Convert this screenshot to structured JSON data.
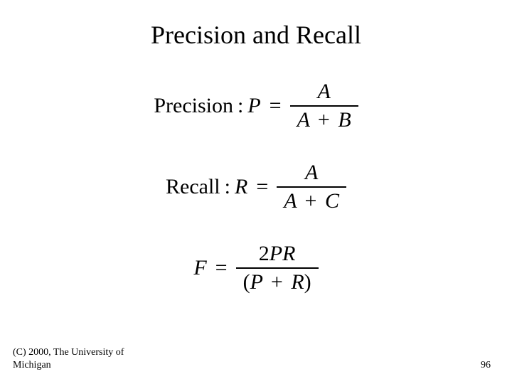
{
  "title": "Precision and Recall",
  "formulas": {
    "precision": {
      "label": "Precision",
      "symbol": "P",
      "numerator": "A",
      "den_left": "A",
      "den_right": "B"
    },
    "recall": {
      "label": "Recall",
      "symbol": "R",
      "numerator": "A",
      "den_left": "A",
      "den_right": "C"
    },
    "fmeasure": {
      "symbol": "F",
      "num_coeff": "2",
      "num_var1": "P",
      "num_var2": "R",
      "den_left": "P",
      "den_right": "R"
    }
  },
  "footer": {
    "copyright": "(C) 2000, The University of Michigan",
    "page_number": "96"
  },
  "styling": {
    "background_color": "#ffffff",
    "text_color": "#000000",
    "title_fontsize": 36,
    "formula_fontsize": 30,
    "footer_fontsize": 14,
    "font_family": "Times New Roman"
  }
}
